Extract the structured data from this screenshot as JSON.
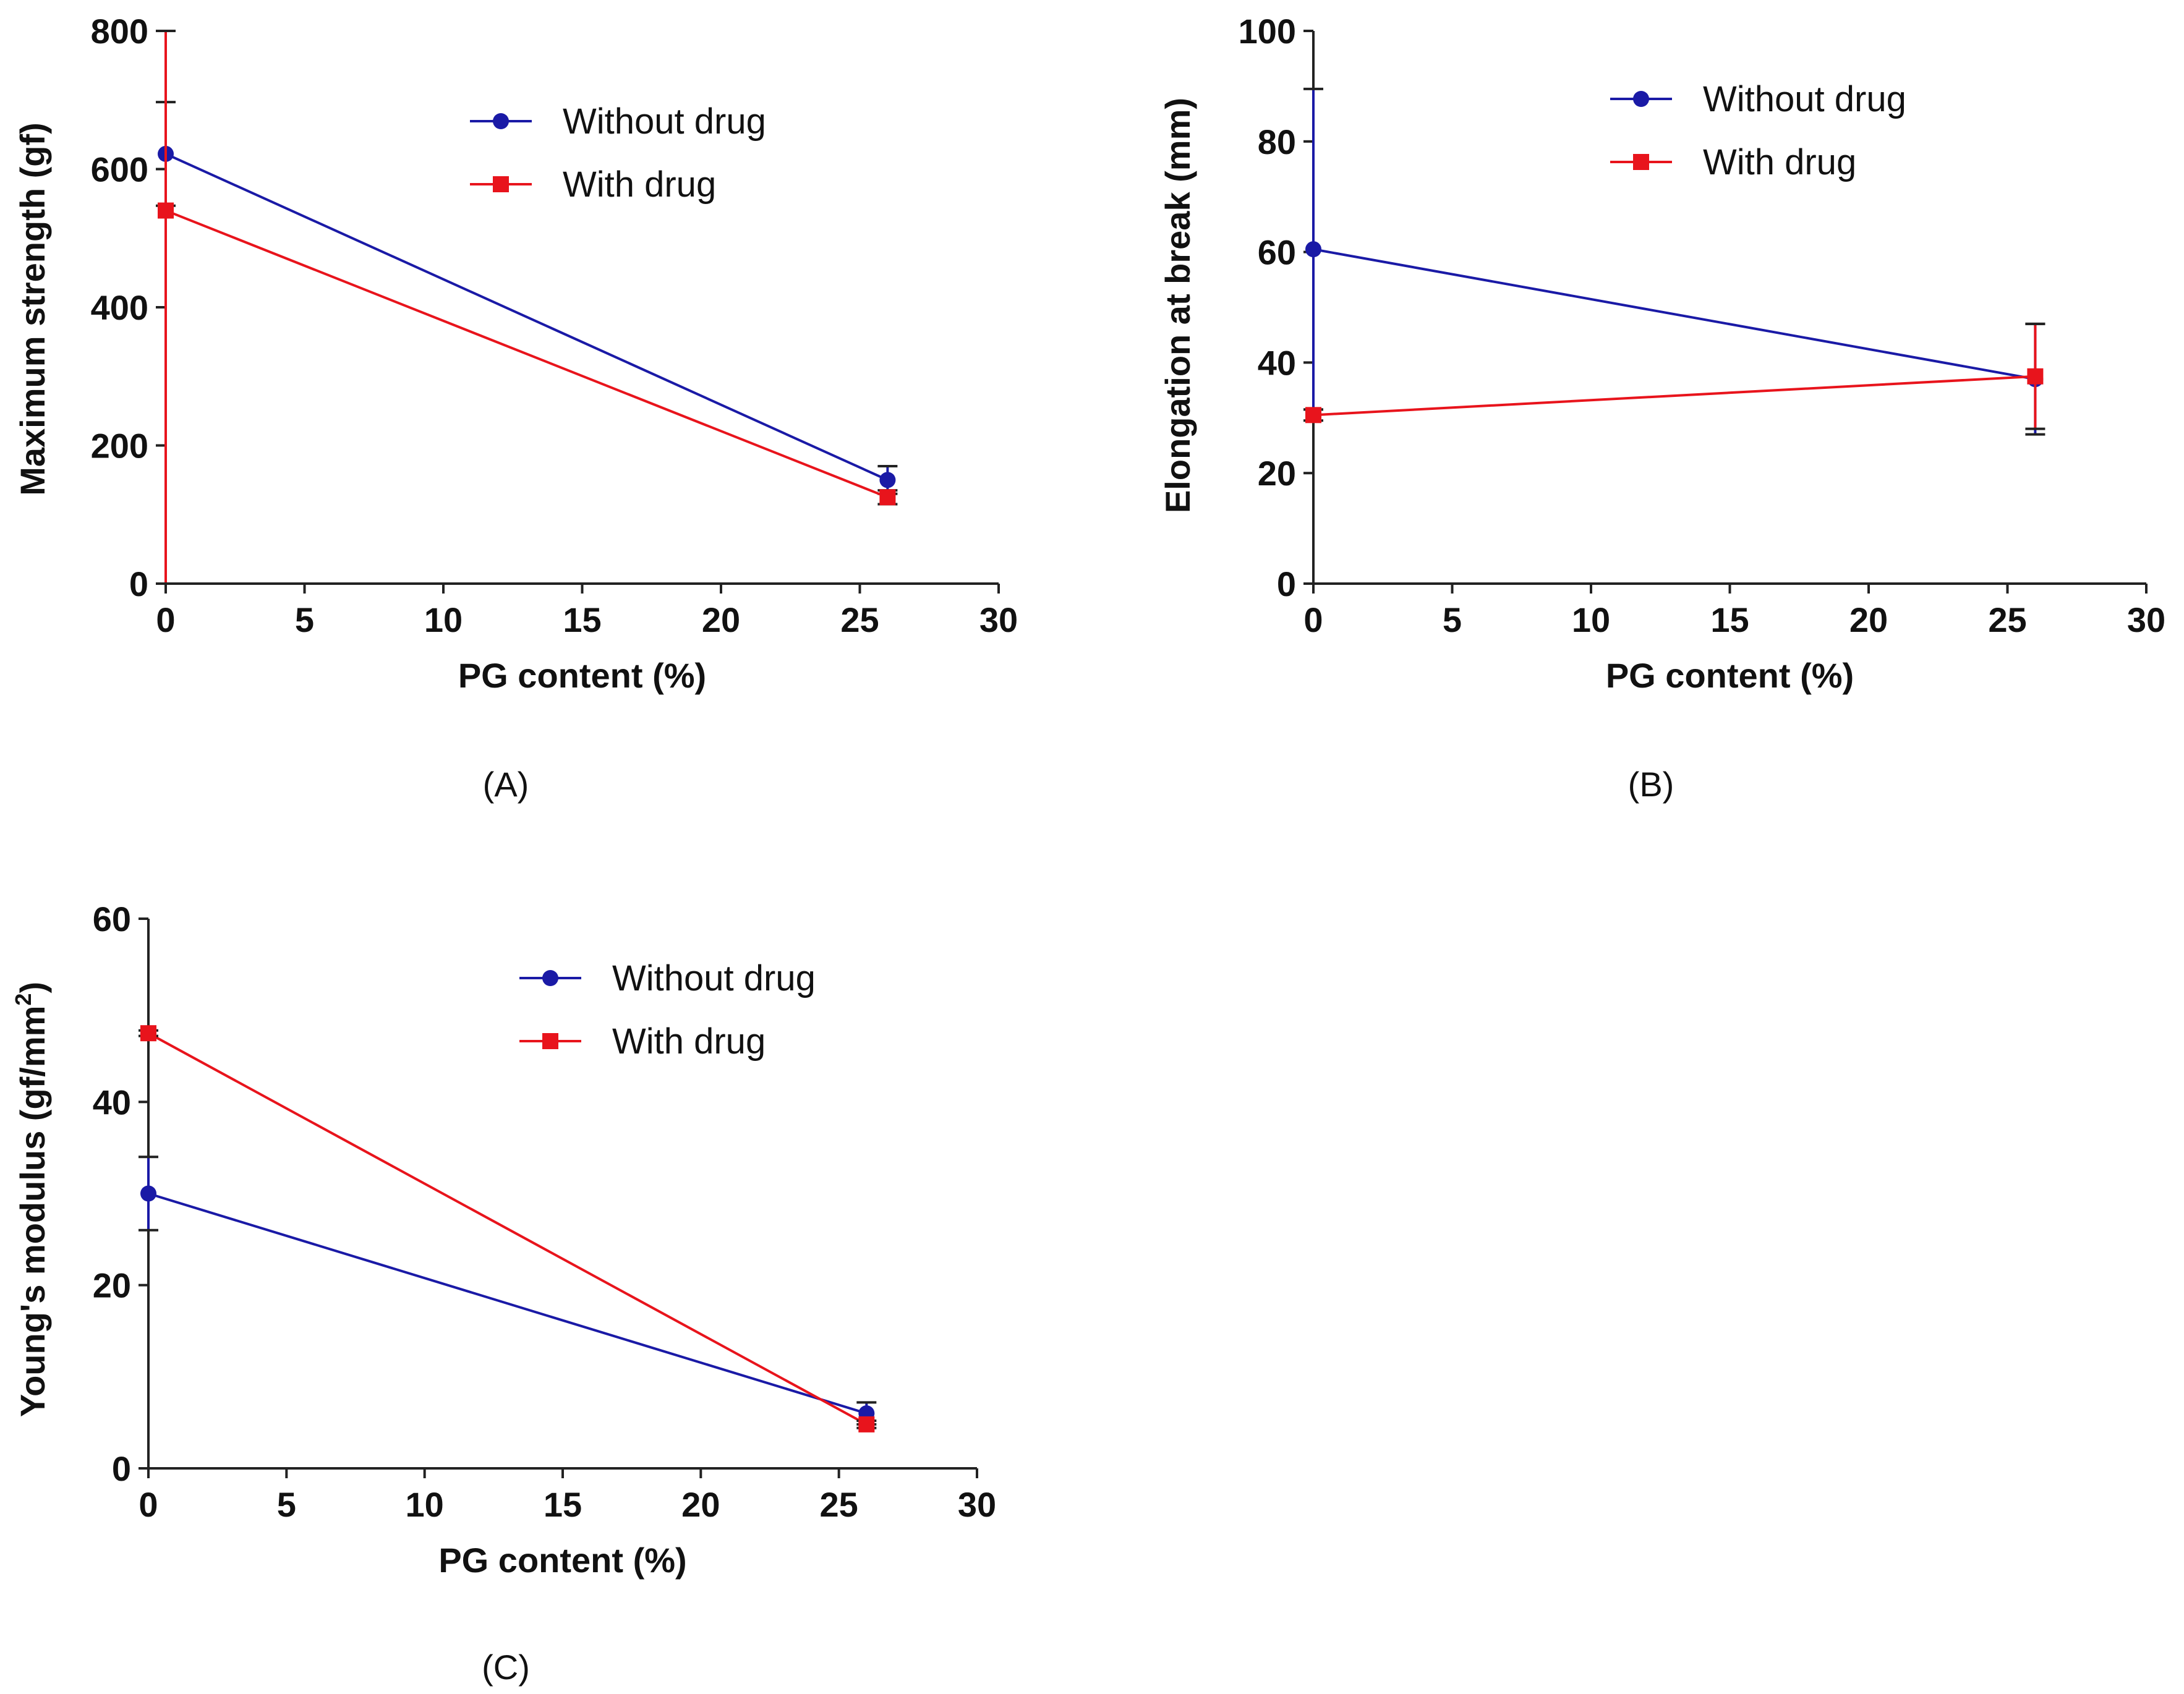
{
  "chart_data": [
    {
      "panel": "(A)",
      "type": "line",
      "xlabel": "PG content (%)",
      "ylabel": "Maximum strength (gf)",
      "ylabel_sup": "",
      "ylabel_tail": "",
      "xlim": [
        0,
        30
      ],
      "ylim": [
        0,
        800
      ],
      "xticks": [
        0,
        5,
        10,
        15,
        20,
        25,
        30
      ],
      "yticks": [
        0,
        200,
        400,
        600,
        800
      ],
      "legend_position": "top-center",
      "series": [
        {
          "name": "Without drug",
          "color": "#1a1aa6",
          "marker": "circle",
          "x": [
            0,
            26
          ],
          "y": [
            622,
            150
          ],
          "err": [
            75,
            20
          ]
        },
        {
          "name": "With drug",
          "color": "#e8141c",
          "marker": "square",
          "x": [
            0,
            26
          ],
          "y": [
            540,
            125
          ],
          "err": [
            620,
            10
          ]
        }
      ]
    },
    {
      "panel": "(B)",
      "type": "line",
      "xlabel": "PG content (%)",
      "ylabel": "Elongation at break (mm)",
      "ylabel_sup": "",
      "ylabel_tail": "",
      "xlim": [
        0,
        30
      ],
      "ylim": [
        0,
        100
      ],
      "xticks": [
        0,
        5,
        10,
        15,
        20,
        25,
        30
      ],
      "yticks": [
        0,
        20,
        40,
        60,
        80,
        100
      ],
      "legend_position": "top-center",
      "series": [
        {
          "name": "Without drug",
          "color": "#1a1aa6",
          "marker": "circle",
          "x": [
            0,
            26
          ],
          "y": [
            60.5,
            37
          ],
          "err": [
            29,
            10
          ]
        },
        {
          "name": "With drug",
          "color": "#e8141c",
          "marker": "square",
          "x": [
            0,
            26
          ],
          "y": [
            30.5,
            37.5
          ],
          "err": [
            1,
            9.5
          ]
        }
      ]
    },
    {
      "panel": "(C)",
      "type": "line",
      "xlabel": "PG content (%)",
      "ylabel": "Young's modulus (gf/mm",
      "ylabel_sup": "2",
      "ylabel_tail": ")",
      "xlim": [
        0,
        30
      ],
      "ylim": [
        0,
        60
      ],
      "xticks": [
        0,
        5,
        10,
        15,
        20,
        25,
        30
      ],
      "yticks": [
        0,
        20,
        40,
        60
      ],
      "legend_position": "top-center",
      "series": [
        {
          "name": "Without drug",
          "color": "#1a1aa6",
          "marker": "circle",
          "x": [
            0,
            26
          ],
          "y": [
            30,
            6
          ],
          "err": [
            4,
            1.2
          ]
        },
        {
          "name": "With drug",
          "color": "#e8141c",
          "marker": "square",
          "x": [
            0,
            26
          ],
          "y": [
            47.5,
            4.8
          ],
          "err": [
            0.3,
            0.4
          ]
        }
      ]
    }
  ]
}
